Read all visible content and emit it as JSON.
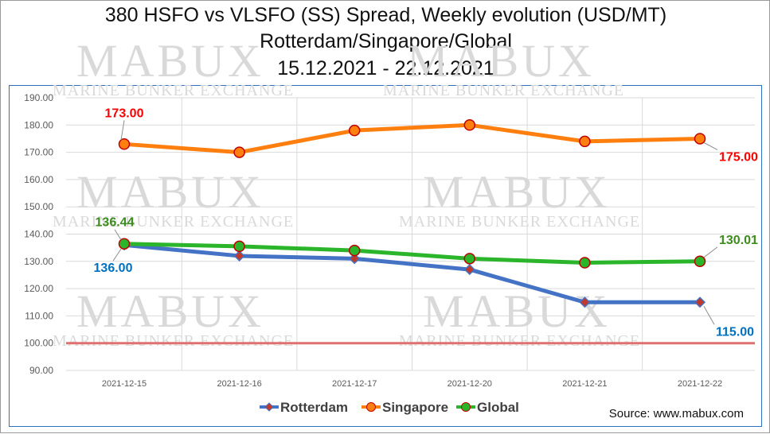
{
  "title": {
    "line1": "380 HSFO vs VLSFO (SS) Spread, Weekly evolution (USD/MT)",
    "line2": "Rotterdam/Singapore/Global",
    "line3": "15.12.2021 - 22.12.2021"
  },
  "watermark": {
    "brand": "MABUX",
    "tagline": "MARINE BUNKER EXCHANGE"
  },
  "source": "Source: www.mabux.com",
  "colors": {
    "rotterdam": "#4472c4",
    "singapore": "#ff7f0e",
    "global": "#2ab52a",
    "reference": "#e07070",
    "label_red": "#ff0000",
    "label_blue": "#0070c0",
    "label_green": "#3c8c1e"
  },
  "chart_data": {
    "type": "line",
    "categories": [
      "2021-12-15",
      "2021-12-16",
      "2021-12-17",
      "2021-12-20",
      "2021-12-21",
      "2021-12-22"
    ],
    "series": [
      {
        "name": "Rotterdam",
        "values": [
          136.0,
          132.0,
          131.0,
          127.0,
          115.0,
          115.0
        ],
        "marker": "diamond"
      },
      {
        "name": "Singapore",
        "values": [
          173.0,
          170.0,
          178.0,
          180.0,
          174.0,
          175.0
        ],
        "marker": "circle"
      },
      {
        "name": "Global",
        "values": [
          136.44,
          135.5,
          134.0,
          131.0,
          129.5,
          130.01
        ],
        "marker": "circle"
      }
    ],
    "reference_line": 100.0,
    "ylim": [
      90,
      190
    ],
    "yticks": [
      "90.00",
      "100.00",
      "110.00",
      "120.00",
      "130.00",
      "140.00",
      "150.00",
      "160.00",
      "170.00",
      "180.00",
      "190.00"
    ],
    "grid": true,
    "legend": "bottom",
    "data_labels": [
      {
        "series": "Singapore",
        "index": 0,
        "text": "173.00"
      },
      {
        "series": "Singapore",
        "index": 5,
        "text": "175.00"
      },
      {
        "series": "Global",
        "index": 0,
        "text": "136.44"
      },
      {
        "series": "Global",
        "index": 5,
        "text": "130.01"
      },
      {
        "series": "Rotterdam",
        "index": 0,
        "text": "136.00"
      },
      {
        "series": "Rotterdam",
        "index": 5,
        "text": "115.00"
      }
    ]
  }
}
